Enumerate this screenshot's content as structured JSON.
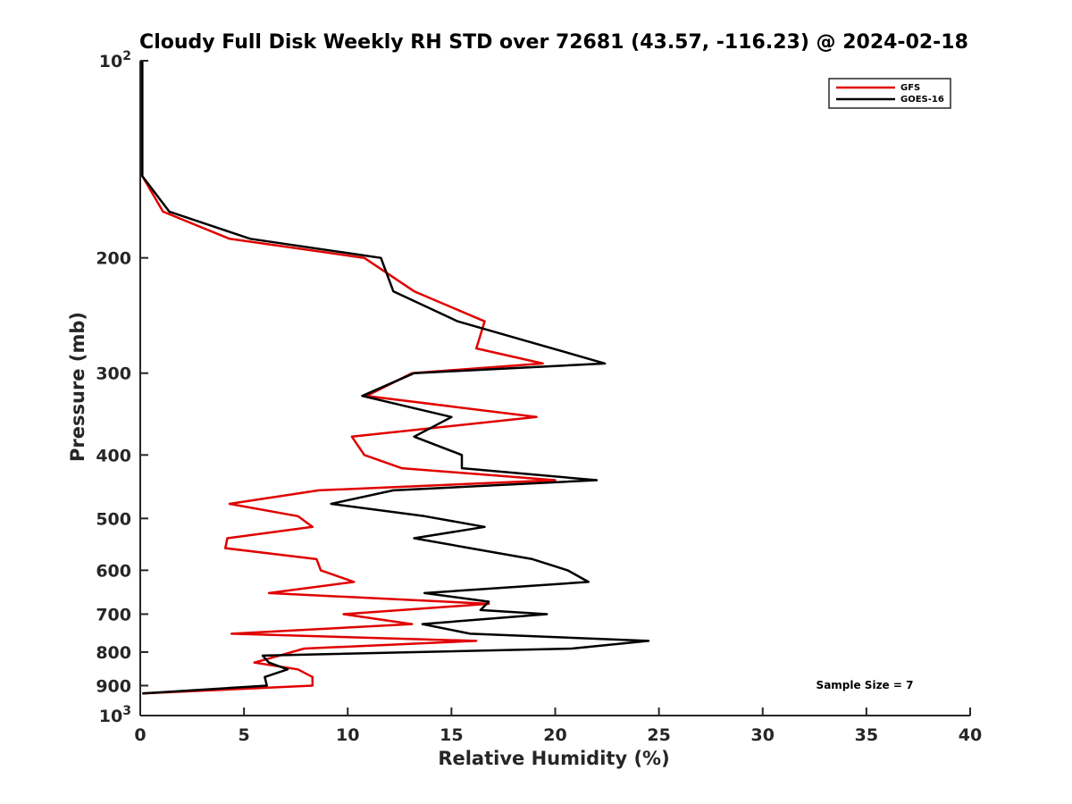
{
  "chart_data": {
    "type": "line",
    "title": "Cloudy Full Disk Weekly RH STD over 72681 (43.57, -116.23) @ 2024-02-18",
    "xlabel": "Relative Humidity (%)",
    "ylabel": "Pressure (mb)",
    "xlim": [
      0,
      40
    ],
    "ylim": [
      100,
      1000
    ],
    "y_scale": "log",
    "y_reversed": true,
    "grid": false,
    "legend_position": "top-right",
    "x_ticks": [
      "0",
      "5",
      "10",
      "15",
      "20",
      "25",
      "30",
      "35",
      "40"
    ],
    "y_ticks": [
      {
        "value": 100,
        "base": "10",
        "exp": "2",
        "label": ""
      },
      {
        "value": 200,
        "base": "",
        "exp": "",
        "label": "200"
      },
      {
        "value": 300,
        "base": "",
        "exp": "",
        "label": "300"
      },
      {
        "value": 400,
        "base": "",
        "exp": "",
        "label": "400"
      },
      {
        "value": 500,
        "base": "",
        "exp": "",
        "label": "500"
      },
      {
        "value": 600,
        "base": "",
        "exp": "",
        "label": "600"
      },
      {
        "value": 700,
        "base": "",
        "exp": "",
        "label": "700"
      },
      {
        "value": 800,
        "base": "",
        "exp": "",
        "label": "800"
      },
      {
        "value": 900,
        "base": "",
        "exp": "",
        "label": "900"
      },
      {
        "value": 1000,
        "base": "10",
        "exp": "3",
        "label": ""
      }
    ],
    "series": [
      {
        "name": "GFS",
        "color": "#e00000",
        "points": [
          [
            0.1,
            100
          ],
          [
            0.1,
            125
          ],
          [
            0.1,
            150
          ],
          [
            1.1,
            170
          ],
          [
            4.3,
            187
          ],
          [
            10.8,
            200
          ],
          [
            13.2,
            225
          ],
          [
            16.6,
            250
          ],
          [
            16.2,
            275
          ],
          [
            19.4,
            290
          ],
          [
            13.1,
            300
          ],
          [
            10.9,
            325
          ],
          [
            19.1,
            350
          ],
          [
            10.2,
            375
          ],
          [
            10.8,
            400
          ],
          [
            12.6,
            419
          ],
          [
            20.0,
            437
          ],
          [
            8.6,
            453
          ],
          [
            4.3,
            475
          ],
          [
            7.6,
            496
          ],
          [
            8.3,
            515
          ],
          [
            4.2,
            536
          ],
          [
            4.1,
            555
          ],
          [
            8.5,
            577
          ],
          [
            8.7,
            600
          ],
          [
            10.3,
            625
          ],
          [
            6.2,
            650
          ],
          [
            16.8,
            675
          ],
          [
            9.8,
            700
          ],
          [
            13.1,
            725
          ],
          [
            4.4,
            750
          ],
          [
            16.2,
            769
          ],
          [
            7.9,
            790
          ],
          [
            6.7,
            810
          ],
          [
            5.5,
            830
          ],
          [
            7.6,
            850
          ],
          [
            8.3,
            873
          ],
          [
            8.3,
            900
          ],
          [
            0.1,
            925
          ]
        ]
      },
      {
        "name": "GOES-16",
        "color": "#000000",
        "points": [
          [
            0.1,
            100
          ],
          [
            0.1,
            125
          ],
          [
            0.1,
            150
          ],
          [
            1.4,
            170
          ],
          [
            5.3,
            187
          ],
          [
            11.6,
            200
          ],
          [
            12.2,
            225
          ],
          [
            15.3,
            250
          ],
          [
            22.4,
            290
          ],
          [
            13.2,
            300
          ],
          [
            10.7,
            325
          ],
          [
            15.0,
            350
          ],
          [
            13.2,
            375
          ],
          [
            15.5,
            400
          ],
          [
            15.5,
            419
          ],
          [
            22.0,
            437
          ],
          [
            12.2,
            453
          ],
          [
            9.2,
            475
          ],
          [
            13.7,
            496
          ],
          [
            16.6,
            515
          ],
          [
            13.2,
            536
          ],
          [
            15.9,
            555
          ],
          [
            18.9,
            577
          ],
          [
            20.6,
            600
          ],
          [
            21.6,
            625
          ],
          [
            13.7,
            650
          ],
          [
            16.8,
            670
          ],
          [
            16.4,
            690
          ],
          [
            19.6,
            700
          ],
          [
            13.6,
            725
          ],
          [
            15.9,
            750
          ],
          [
            24.5,
            769
          ],
          [
            20.8,
            790
          ],
          [
            5.9,
            810
          ],
          [
            6.2,
            830
          ],
          [
            7.1,
            850
          ],
          [
            6.0,
            873
          ],
          [
            6.1,
            900
          ],
          [
            0.1,
            925
          ]
        ]
      }
    ],
    "annotation": "Sample Size = 7"
  }
}
